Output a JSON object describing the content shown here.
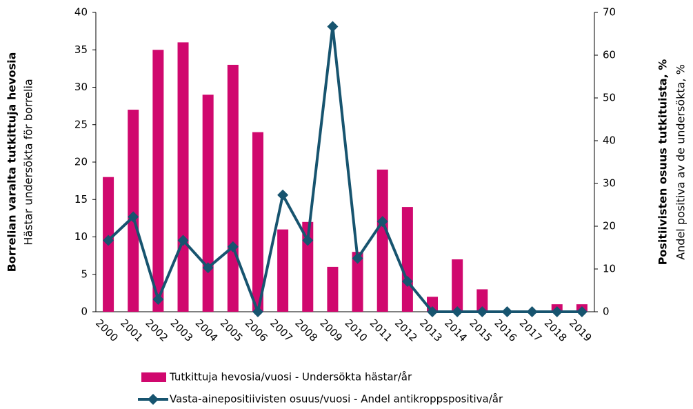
{
  "chart_data": {
    "type": "combo",
    "categories": [
      "2000",
      "2001",
      "2002",
      "2003",
      "2004",
      "2005",
      "2006",
      "2007",
      "2008",
      "2009",
      "2010",
      "2011",
      "2012",
      "2013",
      "2014",
      "2015",
      "2016",
      "2017",
      "2018",
      "2019"
    ],
    "series": [
      {
        "name": "Tutkittuja hevosia/vuosi - Undersökta hästar/år",
        "type": "bar",
        "color": "#d0086e",
        "values": [
          18,
          27,
          35,
          36,
          29,
          33,
          24,
          11,
          12,
          6,
          8,
          19,
          14,
          2,
          7,
          3,
          0,
          0,
          1,
          1
        ]
      },
      {
        "name": "Vasta-ainepositiivisten osuus/vuosi - Andel antikroppspositiva/år",
        "type": "line",
        "axis": "y2",
        "color": "#17546f",
        "values": [
          16.7,
          22.2,
          2.9,
          16.7,
          10.3,
          15.2,
          0,
          27.3,
          16.7,
          66.7,
          12.5,
          21.1,
          7.1,
          0,
          0,
          0,
          0,
          0,
          0,
          0
        ]
      }
    ],
    "ylabel": [
      "Borrelian varalta tutkittuja hevosia",
      "Hästar undersökta för borrelia"
    ],
    "y2label": [
      "Positiivisten osuus tutkituista, %",
      "Andel positiva av de undersökta, %"
    ],
    "ylim": [
      0,
      40
    ],
    "yticks": [
      0,
      5,
      10,
      15,
      20,
      25,
      30,
      35,
      40
    ],
    "y2lim": [
      0,
      70
    ],
    "y2ticks": [
      0,
      10,
      20,
      30,
      40,
      50,
      60,
      70
    ]
  }
}
